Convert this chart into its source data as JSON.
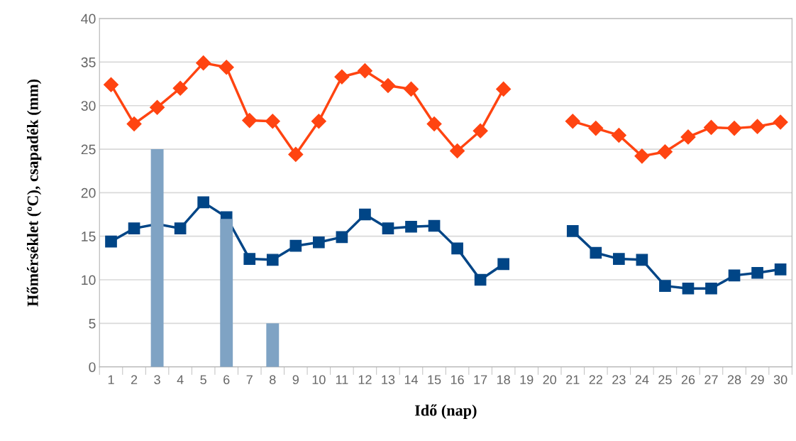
{
  "chart_data": {
    "type": "bar",
    "xlabel": "Idő (nap)",
    "ylabel": "Hőmérséklet (ºC), csapadék (mm)",
    "categories": [
      "1",
      "2",
      "3",
      "4",
      "5",
      "6",
      "7",
      "8",
      "9",
      "10",
      "11",
      "12",
      "13",
      "14",
      "15",
      "16",
      "17",
      "18",
      "19",
      "20",
      "21",
      "22",
      "23",
      "24",
      "25",
      "26",
      "27",
      "28",
      "29",
      "30"
    ],
    "series": [
      {
        "color": "#7fa3c4",
        "values": [
          0,
          0,
          25,
          0,
          0,
          17,
          0,
          5,
          0,
          0,
          0,
          0,
          0,
          0,
          0,
          0,
          0,
          0,
          0,
          null,
          0,
          0,
          0,
          0,
          0,
          0,
          0,
          0,
          0,
          0
        ]
      },
      {
        "type": "line",
        "color": "#ff4411",
        "marker": "diamond",
        "values": [
          32.4,
          27.9,
          29.8,
          32.0,
          34.9,
          34.4,
          28.3,
          28.2,
          24.4,
          28.2,
          33.3,
          34.0,
          32.3,
          31.9,
          27.9,
          24.8,
          27.1,
          31.9,
          null,
          null,
          28.2,
          27.4,
          26.6,
          24.2,
          24.7,
          26.4,
          27.5,
          27.4,
          27.6,
          28.1
        ]
      },
      {
        "type": "line",
        "color": "#004586",
        "marker": "square",
        "values": [
          14.4,
          15.9,
          16.4,
          15.9,
          18.9,
          17.2,
          12.4,
          12.3,
          13.9,
          14.3,
          14.9,
          17.5,
          15.9,
          16.1,
          16.2,
          13.6,
          10.0,
          11.8,
          null,
          null,
          15.6,
          13.1,
          12.4,
          12.3,
          9.3,
          9.0,
          9.0,
          10.5,
          10.8,
          11.2
        ]
      }
    ],
    "ylim": [
      0,
      40
    ],
    "yticks": [
      0,
      5,
      10,
      15,
      20,
      25,
      30,
      35,
      40
    ],
    "grid": "y",
    "line_style": "solid"
  }
}
